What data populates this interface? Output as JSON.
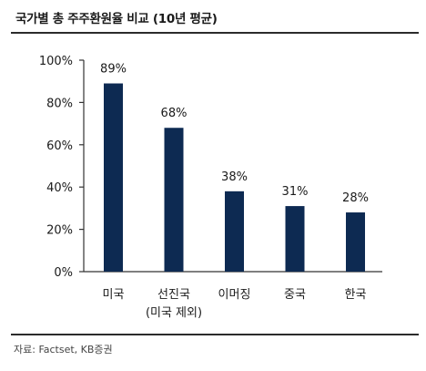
{
  "title": "국가별 총 주주환원율 비교 (10년 평균)",
  "source": "자료: Factset, KB증권",
  "colors": {
    "bar": "#0d2a52",
    "axis": "#333333",
    "text": "#1a1a1a"
  },
  "chart_data": {
    "type": "bar",
    "title": "국가별 총 주주환원율 비교 (10년 평균)",
    "xlabel": "",
    "ylabel": "",
    "categories": [
      {
        "label": "미국",
        "sublabel": ""
      },
      {
        "label": "선진국",
        "sublabel": "(미국 제외)"
      },
      {
        "label": "이머징",
        "sublabel": ""
      },
      {
        "label": "중국",
        "sublabel": ""
      },
      {
        "label": "한국",
        "sublabel": ""
      }
    ],
    "values": [
      89,
      68,
      38,
      31,
      28
    ],
    "value_labels": [
      "89%",
      "68%",
      "38%",
      "31%",
      "28%"
    ],
    "ylim": [
      0,
      100
    ],
    "yticks": [
      0,
      20,
      40,
      60,
      80,
      100
    ],
    "ytick_labels": [
      "0%",
      "20%",
      "40%",
      "60%",
      "80%",
      "100%"
    ],
    "grid": false,
    "legend": "none"
  }
}
